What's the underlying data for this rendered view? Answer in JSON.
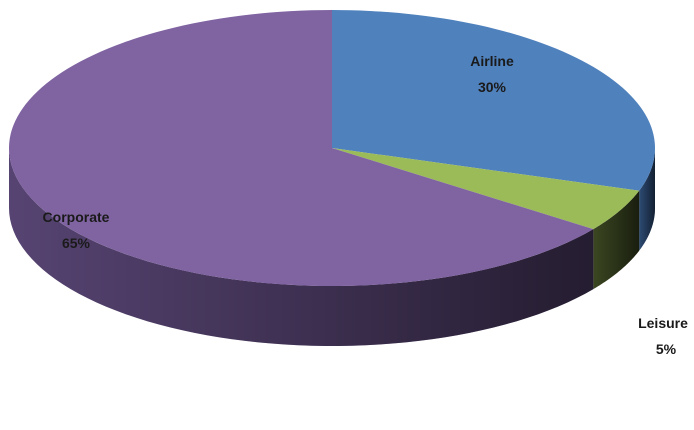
{
  "chart_data": {
    "type": "pie",
    "three_d": true,
    "start_angle_deg": 0,
    "direction": "clockwise from 12 o'clock",
    "slices": [
      {
        "label": "Airline",
        "percent_label": "30%",
        "value": 30,
        "color": "#4F81BD",
        "side_color": "#2F4F7A"
      },
      {
        "label": "Leisure",
        "percent_label": "5%",
        "value": 5,
        "color": "#9BBB59",
        "side_color": "#3E4A23"
      },
      {
        "label": "Corporate",
        "percent_label": "65%",
        "value": 65,
        "color": "#8064A2",
        "side_color": "#5B4778"
      }
    ]
  }
}
